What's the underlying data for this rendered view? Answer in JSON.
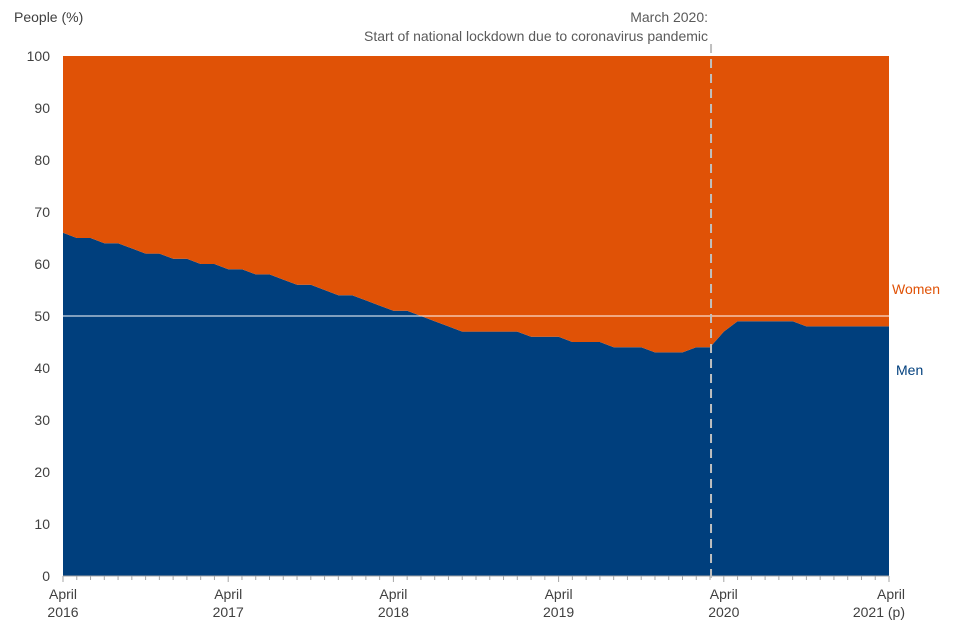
{
  "chart_data": {
    "type": "area",
    "stacked": true,
    "ylabel": "People (%)",
    "ylim": [
      0,
      100
    ],
    "yticks": [
      0,
      10,
      20,
      30,
      40,
      50,
      60,
      70,
      80,
      90,
      100
    ],
    "x_start": "April 2016",
    "x_frequency": "monthly",
    "x_tick_labels": [
      {
        "line1": "April",
        "line2": "2016",
        "index": 0
      },
      {
        "line1": "April",
        "line2": "2017",
        "index": 12
      },
      {
        "line1": "April",
        "line2": "2018",
        "index": 24
      },
      {
        "line1": "April",
        "line2": "2019",
        "index": 36
      },
      {
        "line1": "April",
        "line2": "2020",
        "index": 48
      },
      {
        "line1": "April",
        "line2": "2021 (p)",
        "index": 60
      }
    ],
    "series": [
      {
        "name": "Men",
        "color": "#003f7d",
        "values": [
          66,
          65,
          65,
          64,
          64,
          63,
          62,
          62,
          61,
          61,
          60,
          60,
          59,
          59,
          58,
          58,
          57,
          56,
          56,
          55,
          54,
          54,
          53,
          52,
          51,
          51,
          50,
          49,
          48,
          47,
          47,
          47,
          47,
          47,
          46,
          46,
          46,
          45,
          45,
          45,
          44,
          44,
          44,
          43,
          43,
          43,
          44,
          44,
          47,
          49,
          49,
          49,
          49,
          49,
          48,
          48,
          48,
          48,
          48,
          48,
          48
        ]
      },
      {
        "name": "Women",
        "color": "#e05206",
        "values": [
          34,
          35,
          35,
          36,
          36,
          37,
          38,
          38,
          39,
          39,
          40,
          40,
          41,
          41,
          42,
          42,
          43,
          44,
          44,
          45,
          46,
          46,
          47,
          48,
          49,
          49,
          50,
          51,
          52,
          53,
          53,
          53,
          53,
          53,
          54,
          54,
          54,
          55,
          55,
          55,
          56,
          56,
          56,
          57,
          57,
          57,
          56,
          56,
          53,
          51,
          51,
          51,
          51,
          51,
          52,
          52,
          52,
          52,
          52,
          52,
          52
        ]
      }
    ],
    "reference_line": {
      "y": 50,
      "color": "#ffffff"
    },
    "event_marker": {
      "index": 47,
      "line1": "March 2020:",
      "line2": "Start of national lockdown due to coronavirus pandemic"
    },
    "grid": false,
    "legend": "inline-right"
  }
}
